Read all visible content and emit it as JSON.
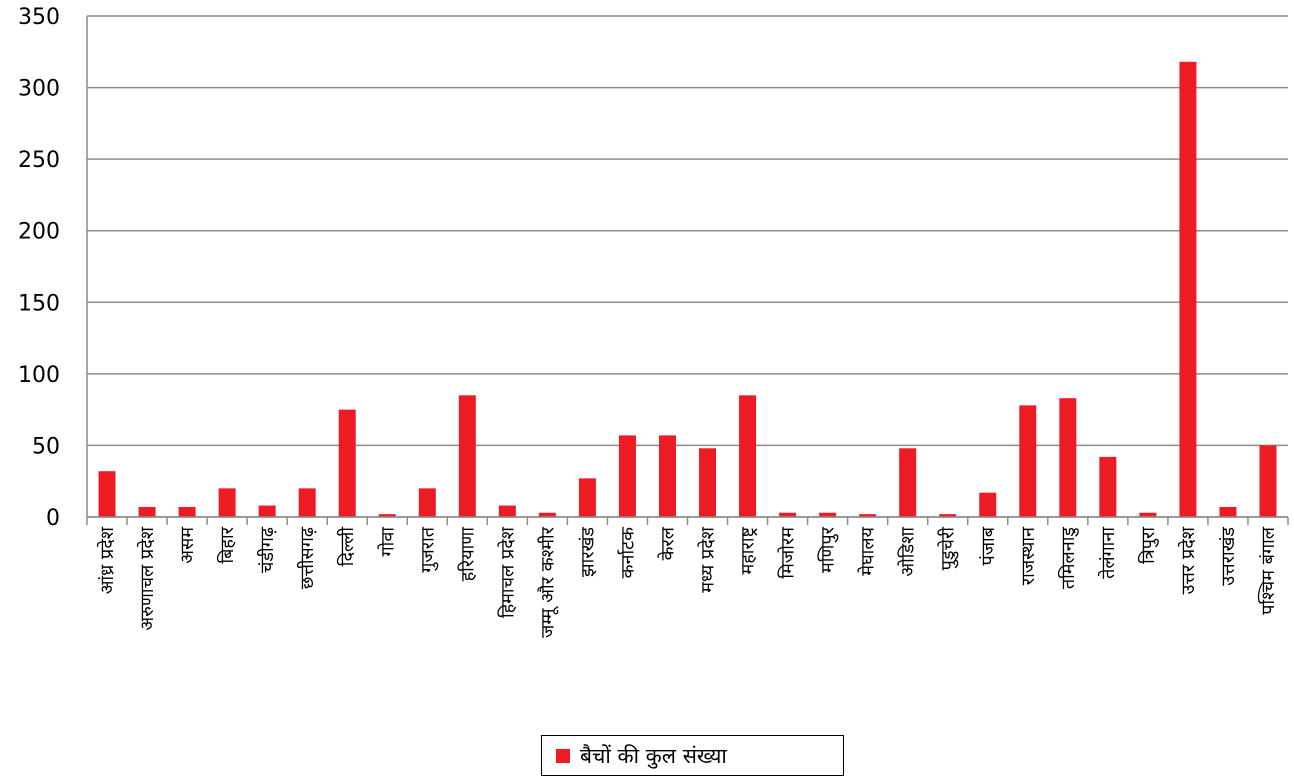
{
  "chart_data": {
    "type": "bar",
    "title": "",
    "xlabel": "",
    "ylabel": "",
    "ylim": [
      0,
      350
    ],
    "yticks": [
      0,
      50,
      100,
      150,
      200,
      250,
      300,
      350
    ],
    "grid": true,
    "legend_position": "bottom",
    "categories": [
      "आंध्र प्रदेश",
      "अरुणाचल प्रदेश",
      "असम",
      "बिहार",
      "चंडीगढ़",
      "छत्तीसगढ़",
      "दिल्ली",
      "गोवा",
      "गुजरात",
      "हरियाणा",
      "हिमाचल प्रदेश",
      "जम्मू और कश्मीर",
      "झारखंड",
      "कर्नाटक",
      "केरल",
      "मध्य प्रदेश",
      "महाराष्ट्र",
      "मिजोरम",
      "मणिपुर",
      "मेघालय",
      "ओडिशा",
      "पुडुचेरी",
      "पंजाब",
      "राजस्थान",
      "तमिलनाडु",
      "तेलंगाना",
      "त्रिपुरा",
      "उत्तर प्रदेश",
      "उत्तराखंड",
      "पश्चिम बंगाल"
    ],
    "series": [
      {
        "name": "बैचों की कुल संख्या",
        "color": "#ed1c24",
        "values": [
          32,
          7,
          7,
          20,
          8,
          20,
          75,
          2,
          20,
          85,
          8,
          3,
          27,
          57,
          57,
          48,
          85,
          3,
          3,
          2,
          48,
          2,
          17,
          78,
          83,
          42,
          3,
          318,
          7,
          50
        ]
      }
    ]
  }
}
